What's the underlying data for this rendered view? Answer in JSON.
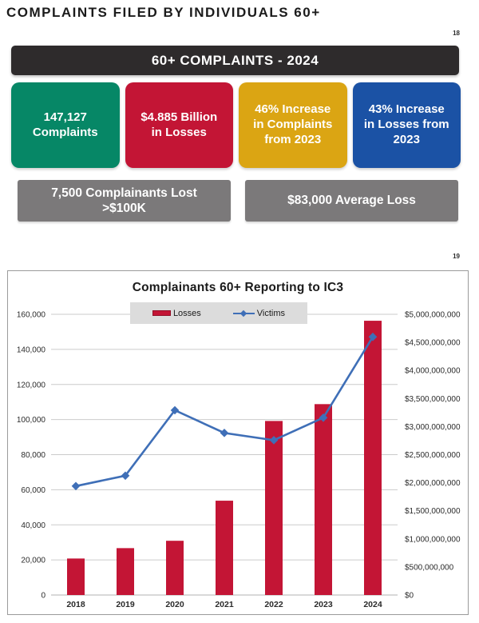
{
  "header": {
    "title": "COMPLAINTS FILED BY INDIVIDUALS 60+",
    "page_number": "18"
  },
  "banner": {
    "label": "60+ COMPLAINTS - 2024"
  },
  "stat_cards": [
    {
      "text": "147,127\nComplaints",
      "color": "#068766"
    },
    {
      "text": "$4.885 Billion\nin Losses",
      "color": "#c31535"
    },
    {
      "text": "46% Increase\nin Complaints\nfrom 2023",
      "color": "#dba513"
    },
    {
      "text": "43% Increase\nin Losses from\n2023",
      "color": "#1b52a5"
    }
  ],
  "callouts": [
    {
      "text": "7,500 Complainants Lost\n>$100K"
    },
    {
      "text": "$83,000 Average Loss"
    }
  ],
  "chart_section": {
    "page_number": "19"
  },
  "colors": {
    "banner_bg": "#2e2b2c",
    "callout_gray": "#7b797a",
    "legend_bg": "#dcdcdc",
    "gridline": "#cbcbcb",
    "baseline": "#b0b0b0"
  },
  "chart_data": {
    "type": "bar",
    "title": "Complainants 60+ Reporting to IC3",
    "categories": [
      "2018",
      "2019",
      "2020",
      "2021",
      "2022",
      "2023",
      "2024"
    ],
    "series": [
      {
        "name": "Losses",
        "type": "bar",
        "axis": "right",
        "color": "#c31535",
        "values": [
          650000000,
          835000000,
          966000000,
          1680000000,
          3100000000,
          3400000000,
          4885000000
        ]
      },
      {
        "name": "Victims",
        "type": "line",
        "axis": "left",
        "color": "#3f6fb7",
        "values": [
          62085,
          68013,
          105301,
          92371,
          88262,
          101068,
          147127
        ]
      }
    ],
    "left_axis": {
      "min": 0,
      "max": 160000,
      "step": 20000,
      "format": "number"
    },
    "right_axis": {
      "min": 0,
      "max": 5000000000,
      "step": 500000000,
      "format": "currency"
    },
    "legend_position": "top-center",
    "grid": "horizontal"
  }
}
